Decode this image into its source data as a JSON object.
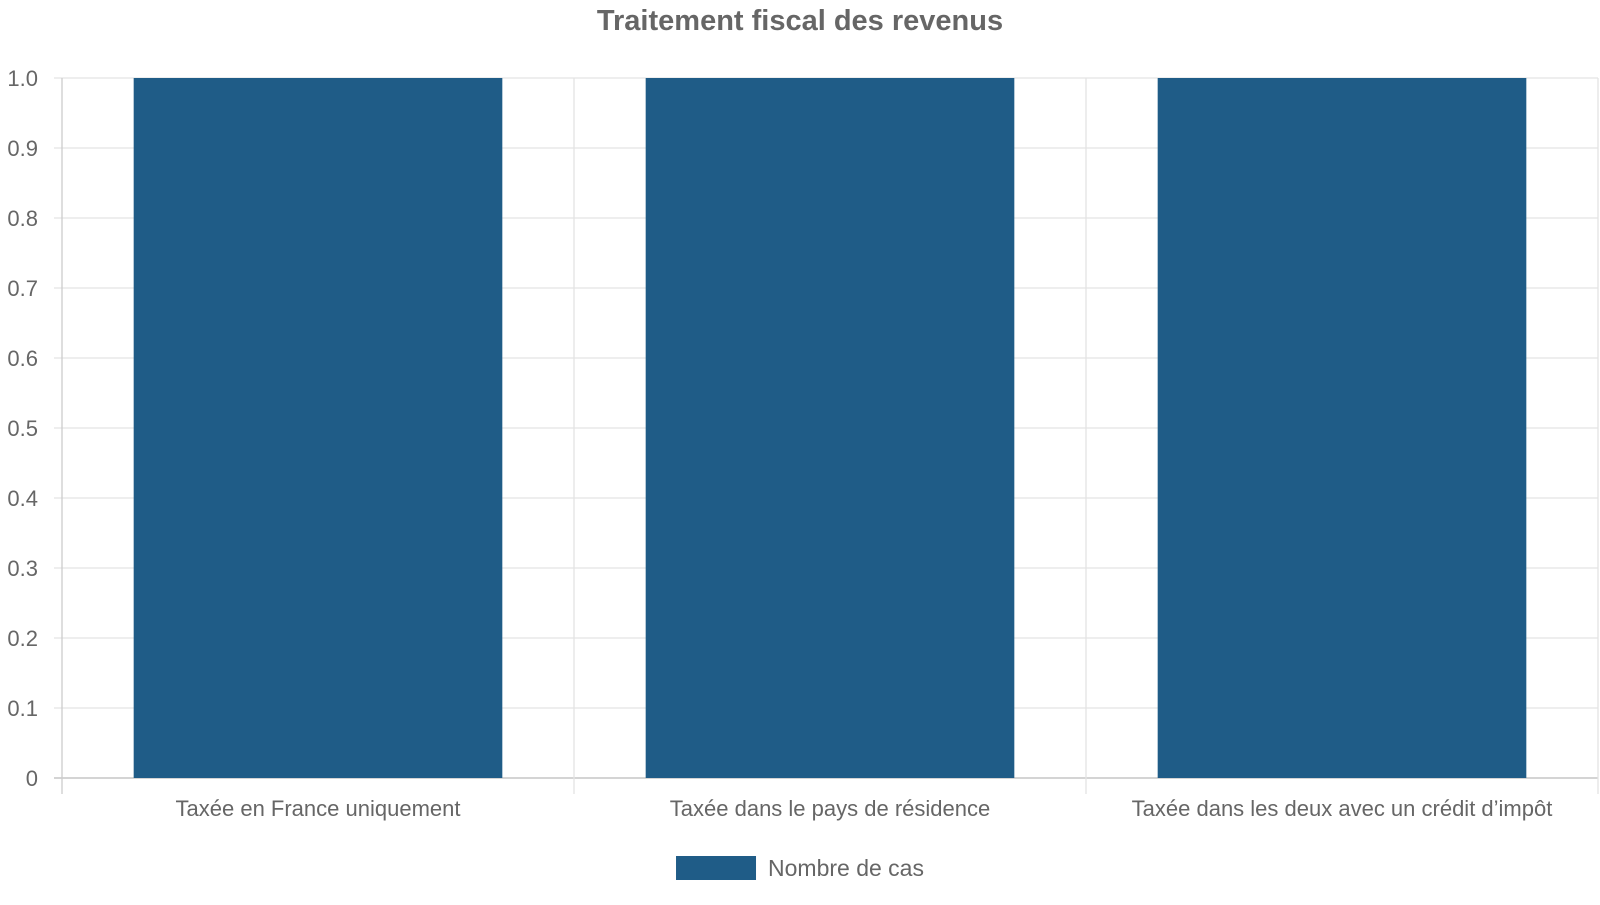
{
  "chart_data": {
    "type": "bar",
    "title": "Traitement fiscal des revenus",
    "categories": [
      "Taxée en France uniquement",
      "Taxée dans le pays de résidence",
      "Taxée dans les deux avec un crédit d’impôt"
    ],
    "series": [
      {
        "name": "Nombre de cas",
        "values": [
          1,
          1,
          1
        ],
        "color": "#1f5c87"
      }
    ],
    "ylim": [
      0,
      1.0
    ],
    "yticks": [
      "0",
      "0.1",
      "0.2",
      "0.3",
      "0.4",
      "0.5",
      "0.6",
      "0.7",
      "0.8",
      "0.9",
      "1.0"
    ],
    "grid": true,
    "legend_position": "bottom"
  }
}
